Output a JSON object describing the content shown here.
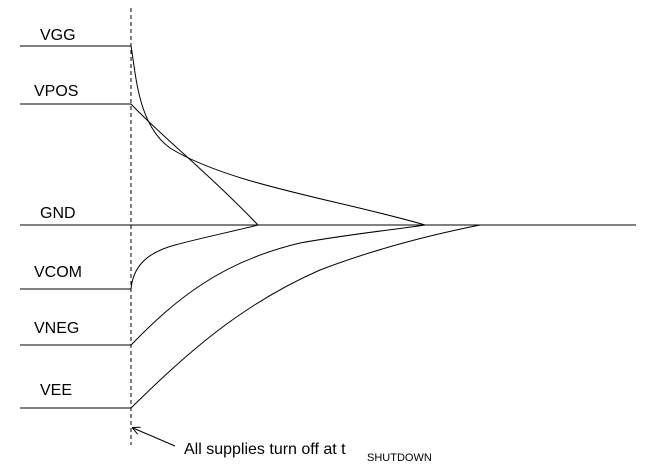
{
  "rails": [
    {
      "id": "vgg",
      "label": "VGG"
    },
    {
      "id": "vpos",
      "label": "VPOS"
    },
    {
      "id": "gnd",
      "label": "GND"
    },
    {
      "id": "vcom",
      "label": "VCOM"
    },
    {
      "id": "vneg",
      "label": "VNEG"
    },
    {
      "id": "vee",
      "label": "VEE"
    }
  ],
  "annotation": {
    "text": "All supplies turn off at t",
    "subscript": "SHUTDOWN"
  }
}
